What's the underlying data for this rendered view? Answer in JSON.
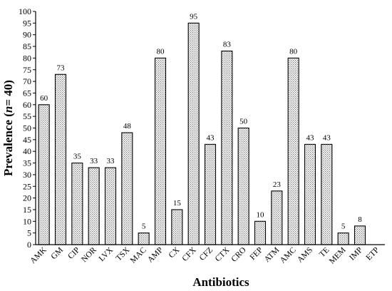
{
  "chart_data": {
    "type": "bar",
    "title": "",
    "xlabel": "Antibiotics",
    "ylabel_prefix": "Prevalence  (",
    "ylabel_italic": "n",
    "ylabel_suffix": "= 40)",
    "ylim": [
      0,
      100
    ],
    "ytick_step": 5,
    "grid": false,
    "bar_fill": "dotted-gray",
    "categories": [
      "AMK",
      "GM",
      "CIP",
      "NOR",
      "LVX",
      "TSX",
      "MAC",
      "AMP",
      "CX",
      "CFX",
      "CFZ",
      "CTX",
      "CRO",
      "FEP",
      "ATM",
      "AMC",
      "AMS",
      "TE",
      "MEM",
      "IMP",
      "ETP"
    ],
    "values": [
      60,
      73,
      35,
      33,
      33,
      48,
      5,
      80,
      15,
      95,
      43,
      83,
      50,
      10,
      23,
      80,
      43,
      43,
      5,
      8,
      null
    ],
    "value_labels": [
      "60",
      "73",
      "35",
      "33",
      "33",
      "48",
      "5",
      "80",
      "15",
      "95",
      "43",
      "83",
      "50",
      "10",
      "23",
      "80",
      "43",
      "43",
      "5",
      "8",
      ""
    ]
  }
}
